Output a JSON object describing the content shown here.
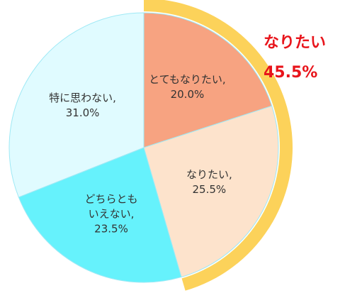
{
  "chart_data": {
    "type": "pie",
    "categories": [
      "とてもなりたい,",
      "なりたい,",
      "どちらとも\nいえない,",
      "特に思わない,"
    ],
    "values": [
      20.0,
      25.5,
      23.5,
      31.0
    ],
    "value_labels": [
      "20.0%",
      "25.5%",
      "23.5%",
      "31.0%"
    ],
    "colors": [
      "#f7a381",
      "#fde3cc",
      "#66f2fc",
      "#e0fbff"
    ],
    "highlight": {
      "label": "なりたい",
      "value": 45.5,
      "value_label": "45.5%",
      "color": "#fcd25a",
      "text_color": "#e8141b"
    }
  }
}
